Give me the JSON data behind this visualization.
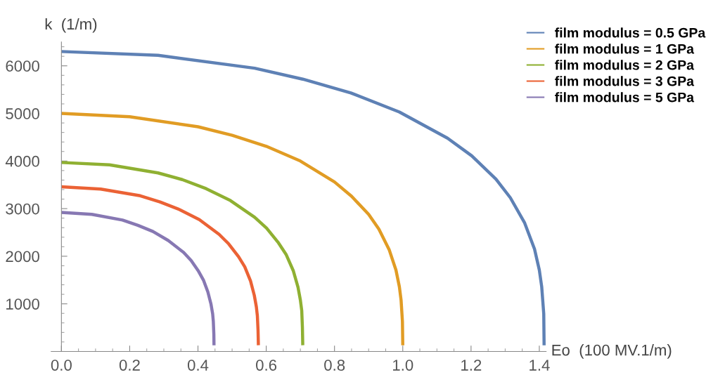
{
  "chart_data": {
    "type": "line",
    "xlabel": "Eo  (100 MV.1/m)",
    "ylabel": "k  (1/m)",
    "xlim": [
      -0.03,
      1.42
    ],
    "ylim": [
      0,
      6500
    ],
    "xticks": [
      {
        "value": 0,
        "label": "0.0"
      },
      {
        "value": 0.2,
        "label": "0.2"
      },
      {
        "value": 0.4,
        "label": "0.4"
      },
      {
        "value": 0.6,
        "label": "0.6"
      },
      {
        "value": 0.8,
        "label": "0.8"
      },
      {
        "value": 1.0,
        "label": "1.0"
      },
      {
        "value": 1.2,
        "label": "1.2"
      },
      {
        "value": 1.4,
        "label": "1.4"
      }
    ],
    "yticks": [
      1000,
      2000,
      3000,
      4000,
      5000,
      6000
    ],
    "grid": false,
    "legend": "top right",
    "marker": "none",
    "line_style": "solid",
    "series": [
      {
        "name": "film modulus = 0.5 GPa",
        "color": "#5e81b5",
        "x": [
          0,
          0.283,
          0.566,
          0.707,
          0.848,
          0.99,
          1.131,
          1.202,
          1.273,
          1.315,
          1.357,
          1.386,
          1.4,
          1.407,
          1.413,
          1.414
        ],
        "values": [
          6300,
          6220,
          5950,
          5720,
          5430,
          5030,
          4480,
          4110,
          3620,
          3230,
          2700,
          2150,
          1710,
          1360,
          790,
          130
        ]
      },
      {
        "name": "film modulus = 1 GPa",
        "color": "#e19c24",
        "x": [
          0,
          0.2,
          0.4,
          0.5,
          0.6,
          0.7,
          0.8,
          0.85,
          0.9,
          0.93,
          0.96,
          0.98,
          0.99,
          0.995,
          0.999,
          1.0
        ],
        "values": [
          5000,
          4930,
          4720,
          4540,
          4310,
          4000,
          3560,
          3260,
          2880,
          2570,
          2140,
          1710,
          1360,
          1080,
          630,
          130
        ]
      },
      {
        "name": "film modulus = 2 GPa",
        "color": "#8fb032",
        "x": [
          0,
          0.141,
          0.283,
          0.354,
          0.424,
          0.495,
          0.566,
          0.601,
          0.636,
          0.658,
          0.679,
          0.693,
          0.7,
          0.704,
          0.706,
          0.707
        ],
        "values": [
          3970,
          3920,
          3750,
          3610,
          3420,
          3170,
          2820,
          2590,
          2280,
          2040,
          1700,
          1350,
          1080,
          860,
          500,
          130
        ]
      },
      {
        "name": "film modulus = 3 GPa",
        "color": "#eb6235",
        "x": [
          0,
          0.115,
          0.231,
          0.289,
          0.346,
          0.404,
          0.462,
          0.49,
          0.519,
          0.537,
          0.554,
          0.565,
          0.571,
          0.574,
          0.576,
          0.577
        ],
        "values": [
          3460,
          3410,
          3270,
          3140,
          2980,
          2770,
          2460,
          2260,
          1990,
          1780,
          1480,
          1180,
          940,
          750,
          440,
          130
        ]
      },
      {
        "name": "film modulus = 5 GPa",
        "color": "#8778b3",
        "x": [
          0,
          0.089,
          0.179,
          0.224,
          0.268,
          0.313,
          0.358,
          0.38,
          0.402,
          0.416,
          0.429,
          0.438,
          0.443,
          0.445,
          0.4465,
          0.447
        ],
        "values": [
          2920,
          2880,
          2760,
          2650,
          2520,
          2330,
          2080,
          1910,
          1680,
          1500,
          1250,
          1000,
          790,
          630,
          370,
          130
        ]
      }
    ]
  }
}
